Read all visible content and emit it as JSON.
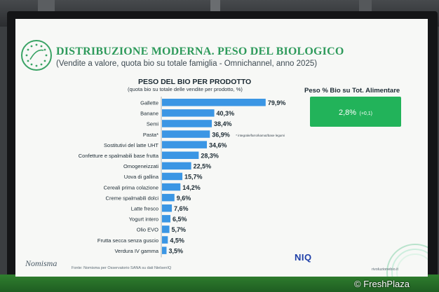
{
  "slide": {
    "title": "DISTRIBUZIONE MODERNA. PESO DEL BIOLOGICO",
    "subtitle": "(Vendite a valore, quota bio su totale famiglia - Omnichannel, anno 2025)",
    "logo_left": "Nomisma",
    "footer": "Fonte: Nomisma per Osservatorio SANA su dati NielsenIQ",
    "logo_right": "NIQ",
    "website": "rivoluzionebio.it",
    "credit": "© FreshPlaza"
  },
  "kpi": {
    "title": "Peso % Bio su Tot. Alimentare",
    "value": "2,8%",
    "delta": "(+0,1)"
  },
  "colors": {
    "title": "#2e9a5b",
    "bar": "#3b96e4",
    "kpi_bg": "#22b35a"
  },
  "chart_data": {
    "type": "bar",
    "orientation": "horizontal",
    "title": "PESO DEL BIO PER PRODOTTO",
    "subtitle": "(quota bio su totale delle vendite per prodotto, %)",
    "categories": [
      "Gallette",
      "Banane",
      "Semi",
      "Pasta*",
      "Sostitutivi del latte UHT",
      "Confetture e spalmabili base frutta",
      "Omogeneizzati",
      "Uova di gallina",
      "Cereali prima colazione",
      "Creme spalmabili dolci",
      "Latte fresco",
      "Yogurt intero",
      "Olio EVO",
      "Frutta secca senza guscio",
      "Verdura IV gamma"
    ],
    "values": [
      79.9,
      40.3,
      38.4,
      36.9,
      34.6,
      28.3,
      22.5,
      15.7,
      14.2,
      9.6,
      7.6,
      6.5,
      5.7,
      4.5,
      3.5
    ],
    "labels": [
      "79,9%",
      "40,3%",
      "38,4%",
      "36,9%",
      "34,6%",
      "28,3%",
      "22,5%",
      "15,7%",
      "14,2%",
      "9,6%",
      "7,6%",
      "6,5%",
      "5,7%",
      "4,5%",
      "3,5%"
    ],
    "annotation": "* integrale/farro/kamut/base legumi",
    "xlim": [
      0,
      80
    ]
  }
}
